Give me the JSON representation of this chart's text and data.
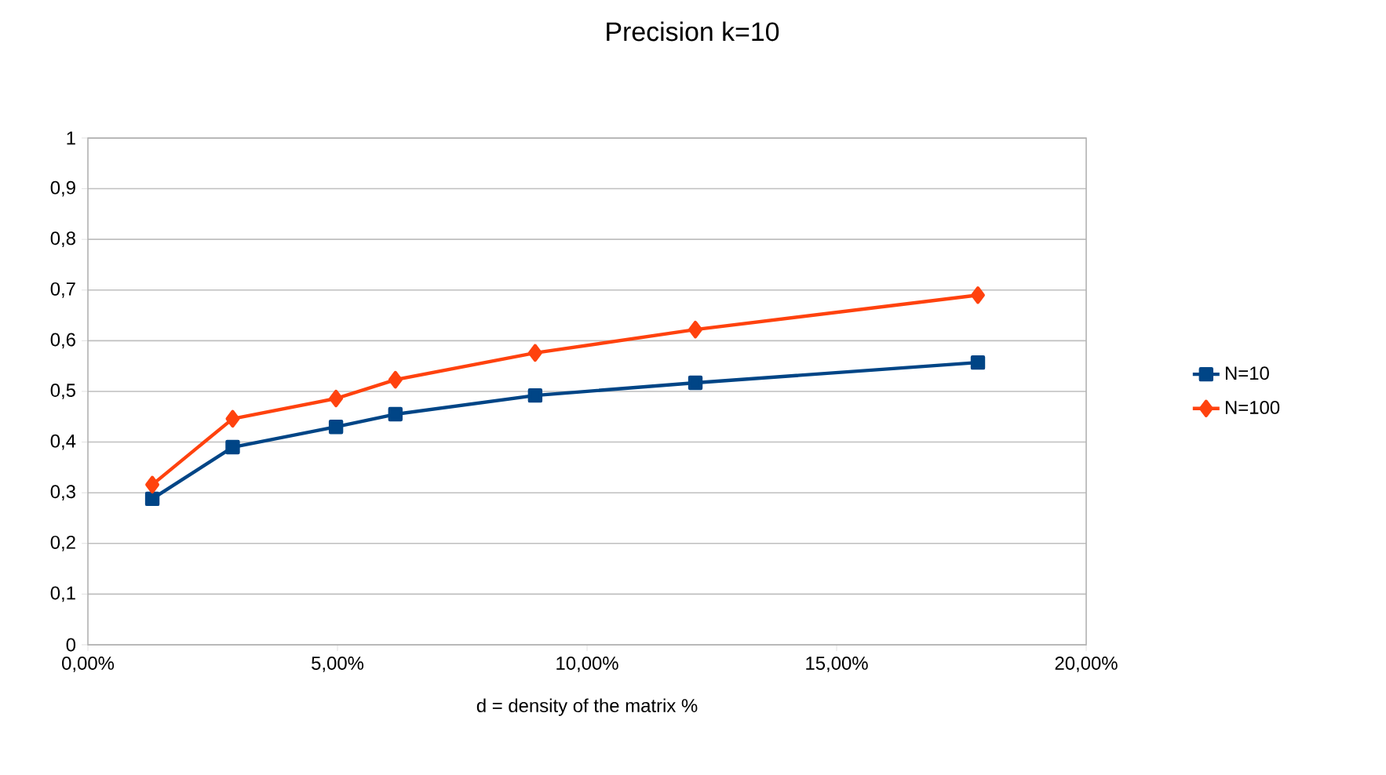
{
  "chart_data": {
    "type": "line",
    "title": "Precision k=10",
    "xlabel": "d = density of the matrix %",
    "xlim": [
      0,
      20
    ],
    "xticks": [
      {
        "value": 0,
        "label": "0,00%"
      },
      {
        "value": 5,
        "label": "5,00%"
      },
      {
        "value": 10,
        "label": "10,00%"
      },
      {
        "value": 15,
        "label": "15,00%"
      },
      {
        "value": 20,
        "label": "20,00%"
      }
    ],
    "ylim": [
      0,
      1
    ],
    "yticks": [
      0,
      {
        "value": 0.1,
        "label": "0,1"
      },
      {
        "value": 0.2,
        "label": "0,2"
      },
      {
        "value": 0.3,
        "label": "0,3"
      },
      {
        "value": 0.4,
        "label": "0,4"
      },
      {
        "value": 0.5,
        "label": "0,5"
      },
      {
        "value": 0.6,
        "label": "0,6"
      },
      {
        "value": 0.7,
        "label": "0,7"
      },
      {
        "value": 0.8,
        "label": "0,8"
      },
      {
        "value": 0.9,
        "label": "0,9"
      },
      1
    ],
    "grid": "y",
    "legend": "right",
    "line_style": "solid",
    "series": [
      {
        "name": "N=10",
        "color": "#004586",
        "marker": "square",
        "x": [
          1.29,
          2.9,
          4.97,
          6.16,
          8.96,
          12.17,
          17.83
        ],
        "values": [
          0.288,
          0.39,
          0.43,
          0.455,
          0.492,
          0.517,
          0.557
        ]
      },
      {
        "name": "N=100",
        "color": "#ff420e",
        "marker": "diamond",
        "x": [
          1.29,
          2.9,
          4.97,
          6.16,
          8.96,
          12.17,
          17.83
        ],
        "values": [
          0.316,
          0.446,
          0.486,
          0.523,
          0.576,
          0.622,
          0.69
        ]
      }
    ]
  }
}
